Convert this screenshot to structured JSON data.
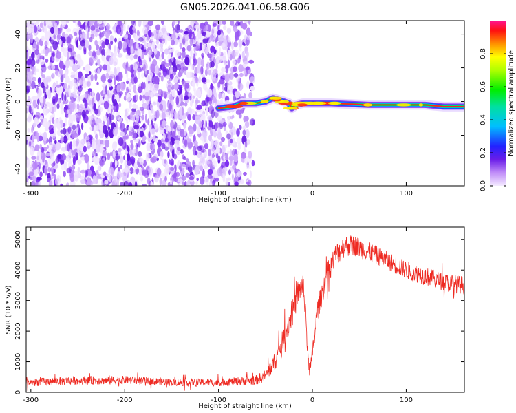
{
  "title": "GN05.2026.041.06.58.G06",
  "colors": {
    "snr_line": "#ee2a22",
    "noise_purple": "#7b2cf0",
    "track_core": "#ff2020",
    "track_mid": "#00e040",
    "track_outer": "#2040ff"
  },
  "chart_data": [
    {
      "type": "heatmap",
      "name": "spectrogram",
      "xlabel": "Height of straight line (km)",
      "ylabel": "Frequency (Hz)",
      "xlim": [
        -305,
        162
      ],
      "ylim": [
        -50,
        48
      ],
      "x_ticks": [
        -300,
        -200,
        -100,
        0,
        100
      ],
      "y_ticks": [
        40,
        20,
        0,
        -20,
        -40
      ],
      "noise_region_x": [
        -305,
        -63
      ],
      "track_start_x": -100,
      "track": [
        {
          "x": -100,
          "y": -4
        },
        {
          "x": -85,
          "y": -3
        },
        {
          "x": -75,
          "y": -1
        },
        {
          "x": -60,
          "y": -1
        },
        {
          "x": -50,
          "y": 0
        },
        {
          "x": -42,
          "y": 2
        },
        {
          "x": -36,
          "y": 1
        },
        {
          "x": -30,
          "y": 0
        },
        {
          "x": -25,
          "y": -1
        },
        {
          "x": -22,
          "y": -4
        },
        {
          "x": -18,
          "y": -2
        },
        {
          "x": -10,
          "y": -1
        },
        {
          "x": 0,
          "y": -1
        },
        {
          "x": 10,
          "y": -1
        },
        {
          "x": 20,
          "y": -1
        },
        {
          "x": 60,
          "y": -2
        },
        {
          "x": 90,
          "y": -2
        },
        {
          "x": 120,
          "y": -2
        },
        {
          "x": 140,
          "y": -3
        },
        {
          "x": 162,
          "y": -3
        }
      ],
      "colorbar": {
        "label": "Normalized spectral amplitude",
        "range": [
          0,
          1
        ],
        "ticks": [
          "0.0",
          "0.2",
          "0.4",
          "0.6",
          "0.8"
        ]
      }
    },
    {
      "type": "line",
      "name": "snr",
      "xlabel": "Height of straight line (km)",
      "ylabel": "SNR (10 * v/v)",
      "xlim": [
        -305,
        162
      ],
      "ylim": [
        0,
        5400
      ],
      "x_ticks": [
        -300,
        -200,
        -100,
        0,
        100
      ],
      "y_ticks": [
        0,
        1000,
        2000,
        3000,
        4000,
        5000
      ],
      "series": [
        {
          "name": "SNR",
          "color": "#ee2a22",
          "x": [
            -305,
            -260,
            -200,
            -150,
            -100,
            -60,
            -50,
            -40,
            -30,
            -20,
            -15,
            -10,
            -7,
            -5,
            -3,
            0,
            5,
            15,
            25,
            35,
            45,
            60,
            80,
            100,
            120,
            140,
            162
          ],
          "y": [
            320,
            380,
            400,
            330,
            320,
            400,
            550,
            1000,
            1800,
            2700,
            3300,
            3500,
            2600,
            1200,
            700,
            1200,
            2600,
            3800,
            4500,
            4800,
            4800,
            4600,
            4300,
            4000,
            3800,
            3600,
            3500
          ],
          "noise": [
            120,
            140,
            140,
            120,
            120,
            160,
            200,
            300,
            380,
            420,
            420,
            380,
            300,
            250,
            200,
            300,
            380,
            380,
            380,
            360,
            340,
            320,
            300,
            300,
            300,
            300,
            300
          ]
        }
      ]
    }
  ]
}
